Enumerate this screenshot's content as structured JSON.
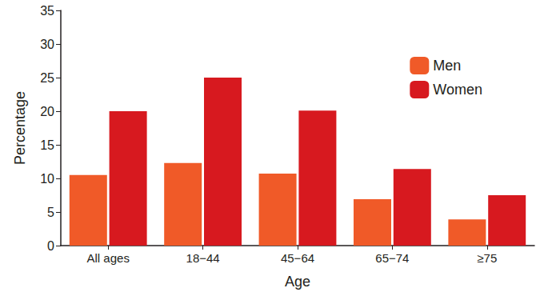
{
  "chart_data": {
    "type": "bar",
    "xlabel": "Age",
    "ylabel": "Percentage",
    "categories": [
      "All ages",
      "18−44",
      "45−64",
      "65−74",
      "≥75"
    ],
    "series": [
      {
        "name": "Men",
        "color": "#f05a28",
        "values": [
          10.5,
          12.3,
          10.7,
          6.9,
          3.9
        ]
      },
      {
        "name": "Women",
        "color": "#d7191f",
        "values": [
          20,
          25,
          20.1,
          11.4,
          7.5
        ]
      }
    ],
    "ylim": [
      0,
      35
    ],
    "yticks": [
      0,
      5,
      10,
      15,
      20,
      25,
      30,
      35
    ],
    "grid": false,
    "legend": "upper right"
  }
}
